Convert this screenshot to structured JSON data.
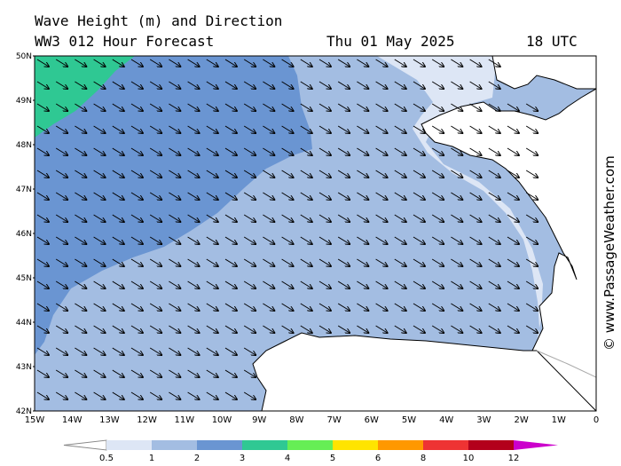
{
  "header": {
    "title": "Wave Height (m) and Direction",
    "model": "WW3 012 Hour Forecast",
    "date": "Thu 01 May 2025",
    "time": "18 UTC"
  },
  "credit": "© www.PassageWeather.com",
  "map": {
    "lon_range": [
      -15,
      0
    ],
    "lat_range": [
      42,
      50
    ],
    "lat_labels": [
      "50N",
      "49N",
      "48N",
      "47N",
      "46N",
      "45N",
      "44N",
      "43N",
      "42N"
    ],
    "lon_labels": [
      "15W",
      "14W",
      "13W",
      "12W",
      "11W",
      "10W",
      "9W",
      "8W",
      "7W",
      "6W",
      "5W",
      "4W",
      "3W",
      "2W",
      "1W",
      "0"
    ],
    "wave_direction": "northwest to southeast"
  },
  "colorbar": {
    "labels": [
      "0.5",
      "1",
      "2",
      "3",
      "4",
      "5",
      "6",
      "8",
      "10",
      "12"
    ],
    "colors": [
      "#dde6f5",
      "#a3bde2",
      "#6a95d2",
      "#2fc893",
      "#66ee55",
      "#ffe400",
      "#ff9800",
      "#ee3333",
      "#b3001b",
      "#cc00cc"
    ],
    "land_color": "#ffffff"
  }
}
